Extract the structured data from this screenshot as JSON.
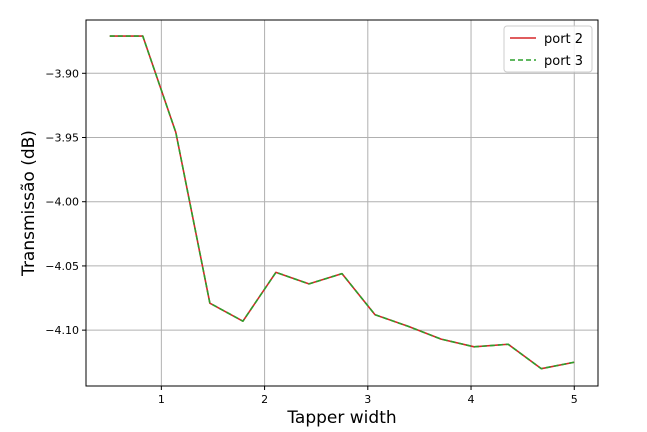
{
  "chart_data": {
    "type": "line",
    "title": "",
    "xlabel": "Tapper width",
    "ylabel": "Transmissão (dB)",
    "xlim": [
      0.27,
      5.23
    ],
    "ylim": [
      -4.1435,
      -3.8585
    ],
    "xticks": [
      1,
      2,
      3,
      4,
      5
    ],
    "yticks": [
      -3.9,
      -3.95,
      -4.0,
      -4.05,
      -4.1
    ],
    "xtick_labels": [
      "1",
      "2",
      "3",
      "4",
      "5"
    ],
    "ytick_labels": [
      "−3.90",
      "−3.95",
      "−4.00",
      "−4.05",
      "−4.10"
    ],
    "grid": true,
    "legend_position": "top-right",
    "x": [
      0.5,
      0.82,
      1.14,
      1.47,
      1.79,
      2.11,
      2.43,
      2.75,
      3.07,
      3.39,
      3.71,
      4.03,
      4.36,
      4.68,
      5.0
    ],
    "series": [
      {
        "name": "port 2",
        "color": "#d62728",
        "style": "solid",
        "values": [
          -3.871,
          -3.871,
          -3.946,
          -4.079,
          -4.093,
          -4.055,
          -4.064,
          -4.056,
          -4.088,
          -4.097,
          -4.107,
          -4.113,
          -4.111,
          -4.13,
          -4.125
        ]
      },
      {
        "name": "port 3",
        "color": "#2ca02c",
        "style": "dashed",
        "values": [
          -3.871,
          -3.871,
          -3.946,
          -4.079,
          -4.093,
          -4.055,
          -4.064,
          -4.056,
          -4.088,
          -4.097,
          -4.107,
          -4.113,
          -4.111,
          -4.13,
          -4.125
        ]
      }
    ]
  }
}
